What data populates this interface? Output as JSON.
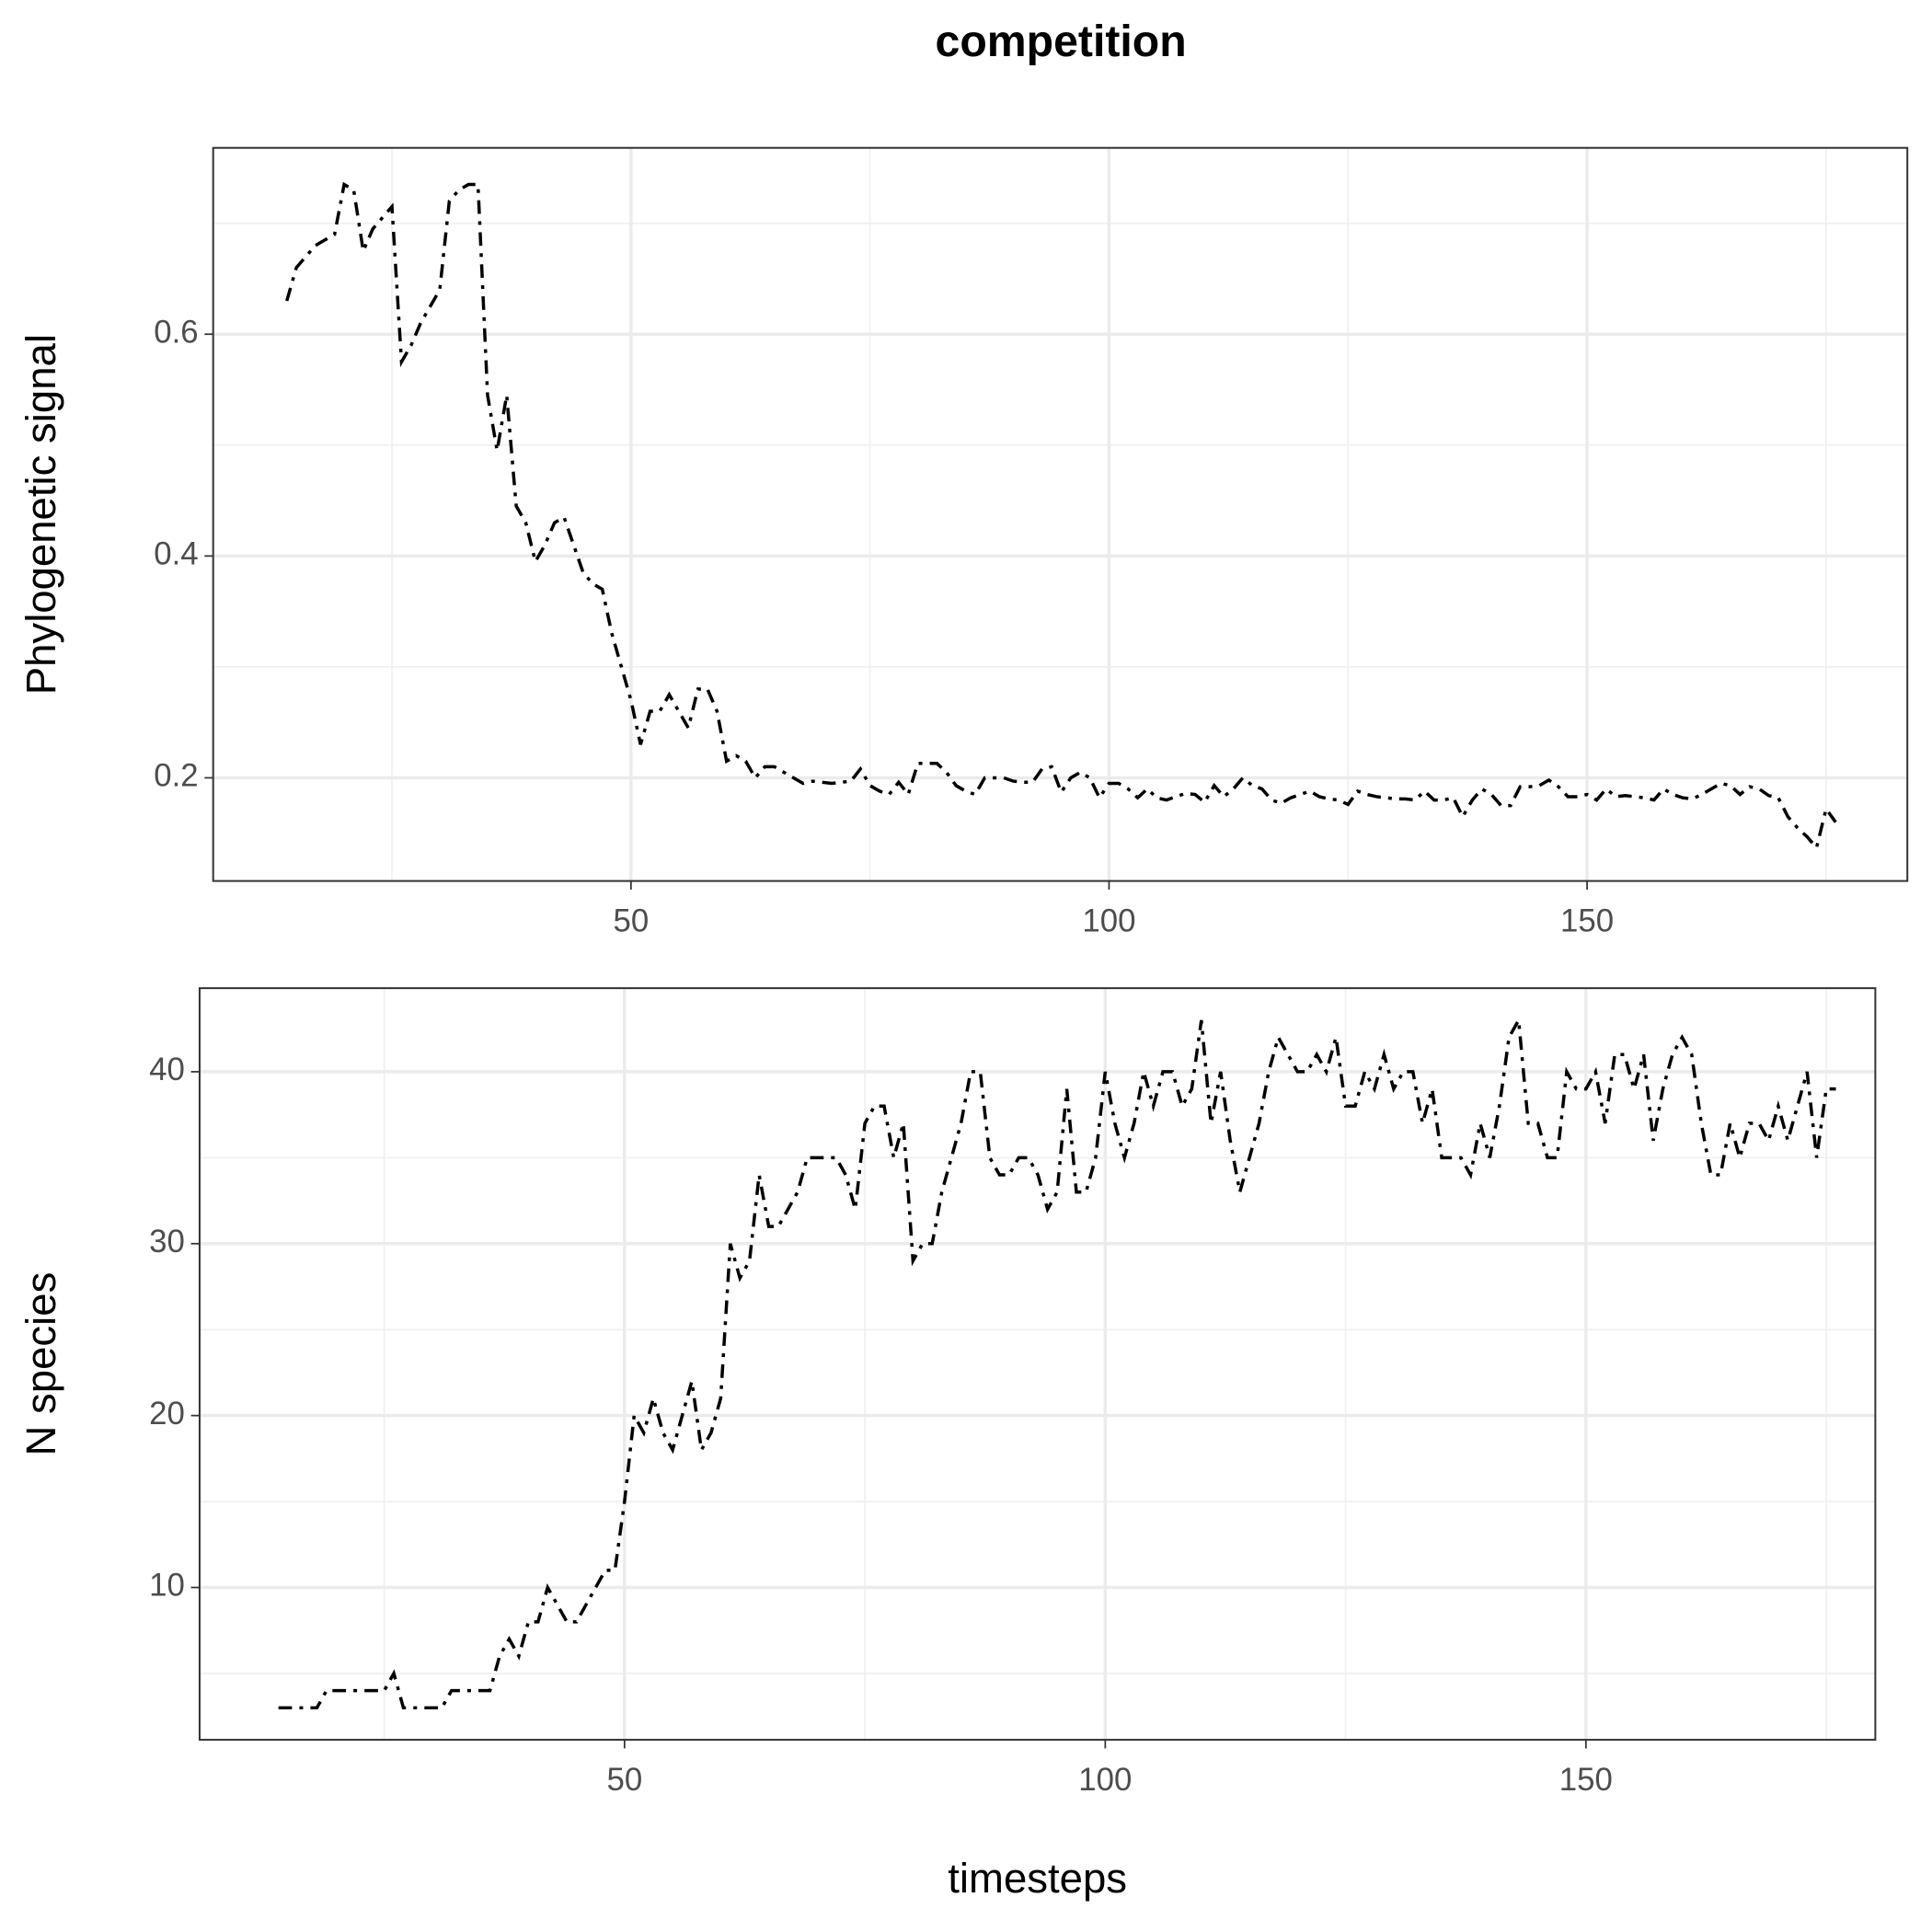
{
  "chart_data": [
    {
      "type": "line",
      "title": "competition",
      "ylabel": "Phylogenetic signal",
      "color": "#000000",
      "linestyle": "dotdash",
      "grid": true,
      "x": [
        14,
        15,
        16,
        17,
        18,
        19,
        20,
        21,
        22,
        23,
        24,
        25,
        26,
        27,
        28,
        29,
        30,
        31,
        32,
        33,
        34,
        35,
        36,
        37,
        38,
        39,
        40,
        41,
        42,
        43,
        44,
        45,
        46,
        47,
        48,
        49,
        50,
        51,
        52,
        53,
        54,
        55,
        56,
        57,
        58,
        59,
        60,
        61,
        62,
        63,
        64,
        65,
        66,
        67,
        68,
        69,
        70,
        71,
        72,
        73,
        74,
        75,
        76,
        77,
        78,
        79,
        80,
        81,
        82,
        83,
        84,
        85,
        86,
        87,
        88,
        89,
        90,
        91,
        92,
        93,
        94,
        95,
        96,
        97,
        98,
        99,
        100,
        101,
        102,
        103,
        104,
        105,
        106,
        107,
        108,
        109,
        110,
        111,
        112,
        113,
        114,
        115,
        116,
        117,
        118,
        119,
        120,
        121,
        122,
        123,
        124,
        125,
        126,
        127,
        128,
        129,
        130,
        131,
        132,
        133,
        134,
        135,
        136,
        137,
        138,
        139,
        140,
        141,
        142,
        143,
        144,
        145,
        146,
        147,
        148,
        149,
        150,
        151,
        152,
        153,
        154,
        155,
        156,
        157,
        158,
        159,
        160,
        161,
        162,
        163,
        164,
        165,
        166,
        167,
        168,
        169,
        170,
        171,
        172,
        173,
        174,
        175,
        176
      ],
      "values": [
        0.63,
        0.66,
        0.67,
        0.68,
        0.685,
        0.69,
        0.735,
        0.73,
        0.675,
        0.695,
        0.705,
        0.715,
        0.575,
        0.59,
        0.61,
        0.625,
        0.64,
        0.72,
        0.73,
        0.735,
        0.735,
        0.545,
        0.495,
        0.545,
        0.445,
        0.43,
        0.395,
        0.41,
        0.43,
        0.435,
        0.41,
        0.385,
        0.375,
        0.37,
        0.33,
        0.3,
        0.27,
        0.23,
        0.26,
        0.26,
        0.275,
        0.26,
        0.245,
        0.28,
        0.28,
        0.26,
        0.215,
        0.22,
        0.215,
        0.2,
        0.21,
        0.21,
        0.205,
        0.2,
        0.195,
        0.197,
        0.196,
        0.195,
        0.196,
        0.197,
        0.208,
        0.193,
        0.188,
        0.185,
        0.196,
        0.185,
        0.213,
        0.213,
        0.213,
        0.205,
        0.193,
        0.188,
        0.185,
        0.2,
        0.2,
        0.2,
        0.197,
        0.196,
        0.196,
        0.208,
        0.21,
        0.187,
        0.2,
        0.205,
        0.2,
        0.182,
        0.195,
        0.195,
        0.19,
        0.182,
        0.19,
        0.182,
        0.18,
        0.183,
        0.186,
        0.185,
        0.178,
        0.193,
        0.183,
        0.19,
        0.2,
        0.193,
        0.19,
        0.18,
        0.177,
        0.182,
        0.185,
        0.188,
        0.183,
        0.181,
        0.18,
        0.176,
        0.188,
        0.185,
        0.183,
        0.182,
        0.181,
        0.181,
        0.18,
        0.188,
        0.18,
        0.18,
        0.182,
        0.165,
        0.18,
        0.19,
        0.185,
        0.175,
        0.175,
        0.192,
        0.192,
        0.193,
        0.198,
        0.192,
        0.183,
        0.183,
        0.185,
        0.18,
        0.19,
        0.183,
        0.184,
        0.183,
        0.182,
        0.18,
        0.19,
        0.185,
        0.182,
        0.181,
        0.185,
        0.19,
        0.195,
        0.193,
        0.185,
        0.192,
        0.19,
        0.184,
        0.182,
        0.165,
        0.155,
        0.147,
        0.137,
        0.172,
        0.16
      ],
      "xlim": [
        6.3,
        183.5
      ],
      "ylim": [
        0.107,
        0.768
      ],
      "xticks": [
        50,
        100,
        150
      ],
      "yticks": [
        0.2,
        0.4,
        0.6
      ],
      "xminorticks": [
        25,
        75,
        125,
        175
      ],
      "yminorticks": [
        0.3,
        0.5,
        0.7
      ]
    },
    {
      "type": "line",
      "ylabel": "N species",
      "xlabel": "timesteps",
      "color": "#000000",
      "linestyle": "dotdash",
      "grid": true,
      "x": [
        14,
        15,
        16,
        17,
        18,
        19,
        20,
        21,
        22,
        23,
        24,
        25,
        26,
        27,
        28,
        29,
        30,
        31,
        32,
        33,
        34,
        35,
        36,
        37,
        38,
        39,
        40,
        41,
        42,
        43,
        44,
        45,
        46,
        47,
        48,
        49,
        50,
        51,
        52,
        53,
        54,
        55,
        56,
        57,
        58,
        59,
        60,
        61,
        62,
        63,
        64,
        65,
        66,
        67,
        68,
        69,
        70,
        71,
        72,
        73,
        74,
        75,
        76,
        77,
        78,
        79,
        80,
        81,
        82,
        83,
        84,
        85,
        86,
        87,
        88,
        89,
        90,
        91,
        92,
        93,
        94,
        95,
        96,
        97,
        98,
        99,
        100,
        101,
        102,
        103,
        104,
        105,
        106,
        107,
        108,
        109,
        110,
        111,
        112,
        113,
        114,
        115,
        116,
        117,
        118,
        119,
        120,
        121,
        122,
        123,
        124,
        125,
        126,
        127,
        128,
        129,
        130,
        131,
        132,
        133,
        134,
        135,
        136,
        137,
        138,
        139,
        140,
        141,
        142,
        143,
        144,
        145,
        146,
        147,
        148,
        149,
        150,
        151,
        152,
        153,
        154,
        155,
        156,
        157,
        158,
        159,
        160,
        161,
        162,
        163,
        164,
        165,
        166,
        167,
        168,
        169,
        170,
        171,
        172,
        173,
        174,
        175,
        176
      ],
      "values": [
        3,
        3,
        3,
        3,
        3,
        4,
        4,
        4,
        4,
        4,
        4,
        4,
        5,
        3,
        3,
        3,
        3,
        3,
        4,
        4,
        4,
        4,
        4,
        6,
        7,
        6,
        8,
        8,
        10,
        9,
        8,
        8,
        9,
        10,
        11,
        11,
        15,
        20,
        19,
        21,
        19,
        18,
        20,
        22,
        18,
        19,
        21,
        30,
        28,
        29,
        34,
        31,
        31,
        32,
        33,
        35,
        35,
        35,
        35,
        34,
        32,
        37,
        38,
        38,
        35,
        37,
        29,
        30,
        30,
        33,
        35,
        37,
        40,
        40,
        35,
        34,
        34,
        35,
        35,
        34,
        32,
        33,
        39,
        33,
        33,
        35,
        40,
        37,
        35,
        37,
        40,
        38,
        40,
        40,
        38,
        39,
        43,
        37,
        40,
        36,
        33,
        35,
        37,
        40,
        42,
        41,
        40,
        40,
        41,
        40,
        42,
        38,
        38,
        40,
        39,
        41,
        39,
        40,
        40,
        37,
        39,
        35,
        35,
        35,
        34,
        37,
        35,
        38,
        42,
        43,
        37,
        37,
        35,
        35,
        40,
        39,
        39,
        40,
        37,
        41,
        41,
        39,
        41,
        36,
        39,
        41,
        42,
        41,
        37,
        34,
        34,
        37,
        35,
        37,
        37,
        36,
        38,
        36,
        38,
        40,
        35,
        39,
        39
      ],
      "xlim": [
        5.8,
        180.1
      ],
      "ylim": [
        1.14,
        44.86
      ],
      "xticks": [
        50,
        100,
        150
      ],
      "yticks": [
        10,
        20,
        30,
        40
      ],
      "xminorticks": [
        25,
        75,
        125,
        175
      ],
      "yminorticks": [
        5,
        15,
        25,
        35
      ]
    }
  ]
}
